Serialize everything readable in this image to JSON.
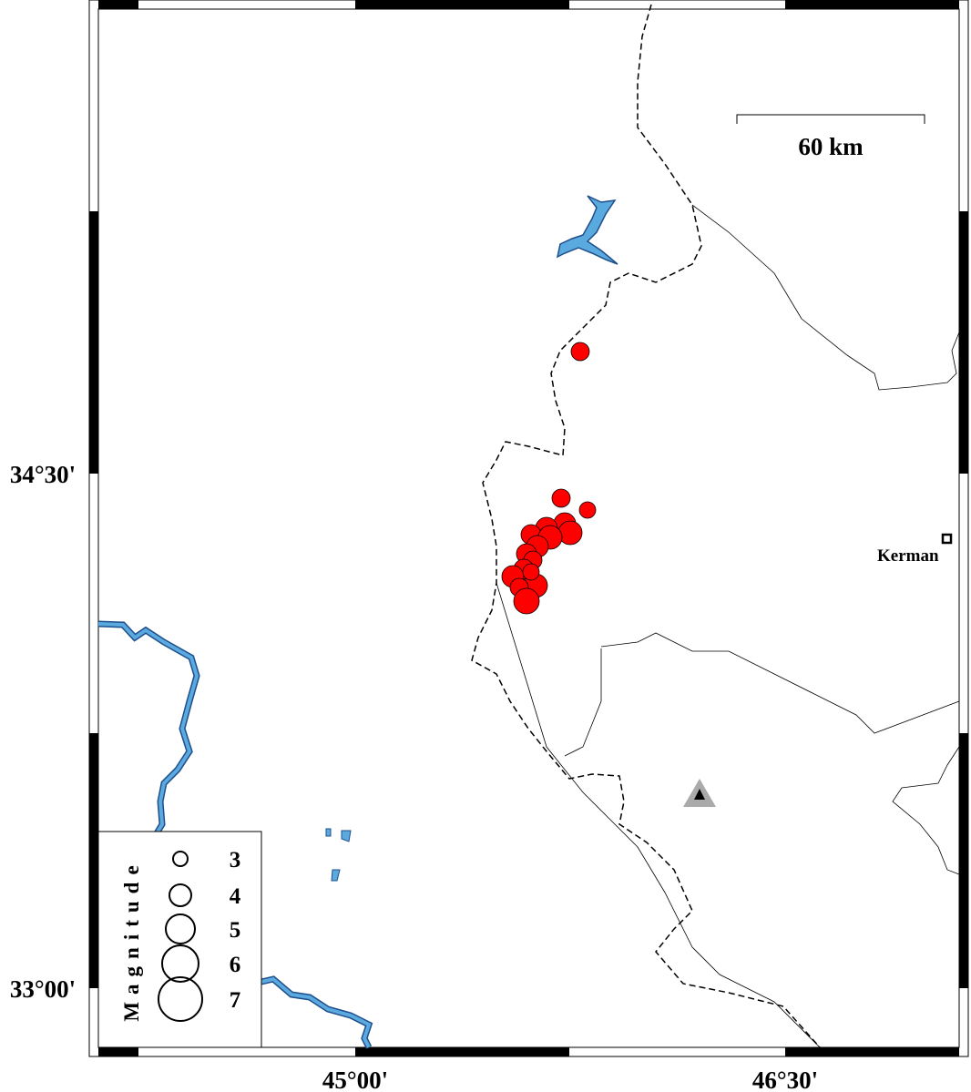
{
  "map": {
    "lat_labels": [
      "34°30'",
      "33°00'"
    ],
    "lon_labels": [
      "45°00'",
      "46°30'"
    ],
    "scale_bar": "60 km",
    "city": "Kerman",
    "legend": {
      "title": "Magnitude",
      "magnitudes": [
        3,
        4,
        5,
        6,
        7
      ]
    }
  }
}
